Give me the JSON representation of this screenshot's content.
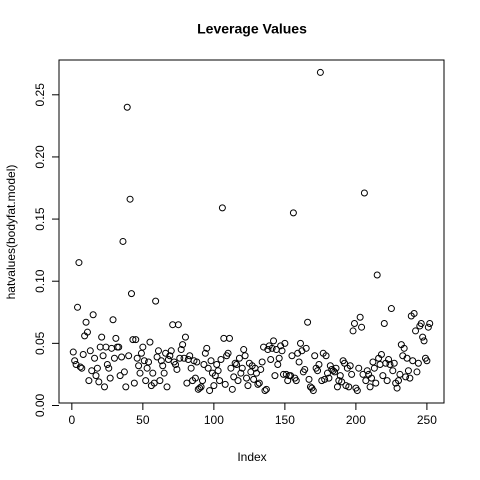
{
  "chart_data": {
    "type": "scatter",
    "title": "Leverage Values",
    "x_label": "Index",
    "y_label": "hatvalues(bodyfat.model)",
    "color": "#000000",
    "x": [
      1,
      2,
      3,
      4,
      5,
      6,
      7,
      8,
      9,
      10,
      11,
      12,
      13,
      14,
      15,
      16,
      17,
      18,
      19,
      20,
      21,
      22,
      23,
      24,
      25,
      26,
      27,
      28,
      29,
      30,
      31,
      32,
      33,
      34,
      35,
      36,
      37,
      38,
      39,
      40,
      41,
      42,
      43,
      44,
      45,
      46,
      47,
      48,
      49,
      50,
      51,
      52,
      53,
      54,
      55,
      56,
      57,
      58,
      59,
      60,
      61,
      62,
      63,
      64,
      65,
      66,
      67,
      68,
      69,
      70,
      71,
      72,
      73,
      74,
      75,
      76,
      77,
      78,
      79,
      80,
      81,
      82,
      83,
      84,
      85,
      86,
      87,
      88,
      89,
      90,
      91,
      92,
      93,
      94,
      95,
      96,
      97,
      98,
      99,
      100,
      101,
      102,
      103,
      104,
      105,
      106,
      107,
      108,
      109,
      110,
      111,
      112,
      113,
      114,
      115,
      116,
      117,
      118,
      119,
      120,
      121,
      122,
      123,
      124,
      125,
      126,
      127,
      128,
      129,
      130,
      131,
      132,
      133,
      134,
      135,
      136,
      137,
      138,
      139,
      140,
      141,
      142,
      143,
      144,
      145,
      146,
      147,
      148,
      149,
      150,
      151,
      152,
      153,
      154,
      155,
      156,
      157,
      158,
      159,
      160,
      161,
      162,
      163,
      164,
      165,
      166,
      167,
      168,
      169,
      170,
      171,
      172,
      173,
      174,
      175,
      176,
      177,
      178,
      179,
      180,
      181,
      182,
      183,
      184,
      185,
      186,
      187,
      188,
      189,
      190,
      191,
      192,
      193,
      194,
      195,
      196,
      197,
      198,
      199,
      200,
      201,
      202,
      203,
      204,
      205,
      206,
      207,
      208,
      209,
      210,
      211,
      212,
      213,
      214,
      215,
      216,
      217,
      218,
      219,
      220,
      221,
      222,
      223,
      224,
      225,
      226,
      227,
      228,
      229,
      230,
      231,
      232,
      233,
      234,
      235,
      236,
      237,
      238,
      239,
      240,
      241,
      242,
      243,
      244,
      245,
      246,
      247,
      248,
      249,
      250,
      251,
      252
    ],
    "values": [
      0.043,
      0.036,
      0.033,
      0.079,
      0.115,
      0.031,
      0.03,
      0.041,
      0.056,
      0.067,
      0.059,
      0.02,
      0.044,
      0.028,
      0.073,
      0.038,
      0.024,
      0.03,
      0.019,
      0.047,
      0.055,
      0.04,
      0.015,
      0.047,
      0.033,
      0.03,
      0.022,
      0.046,
      0.069,
      0.038,
      0.054,
      0.047,
      0.047,
      0.024,
      0.039,
      0.132,
      0.027,
      0.015,
      0.24,
      0.04,
      0.166,
      0.09,
      0.053,
      0.018,
      0.053,
      0.038,
      0.032,
      0.026,
      0.042,
      0.047,
      0.036,
      0.02,
      0.03,
      0.035,
      0.051,
      0.016,
      0.026,
      0.018,
      0.084,
      0.039,
      0.044,
      0.02,
      0.036,
      0.032,
      0.026,
      0.042,
      0.015,
      0.037,
      0.04,
      0.044,
      0.065,
      0.035,
      0.033,
      0.029,
      0.065,
      0.038,
      0.045,
      0.049,
      0.038,
      0.055,
      0.018,
      0.037,
      0.04,
      0.03,
      0.02,
      0.036,
      0.022,
      0.035,
      0.013,
      0.014,
      0.015,
      0.02,
      0.033,
      0.042,
      0.046,
      0.03,
      0.012,
      0.036,
      0.026,
      0.016,
      0.024,
      0.033,
      0.028,
      0.02,
      0.037,
      0.159,
      0.054,
      0.017,
      0.04,
      0.042,
      0.054,
      0.03,
      0.013,
      0.023,
      0.034,
      0.033,
      0.02,
      0.038,
      0.026,
      0.03,
      0.045,
      0.04,
      0.022,
      0.016,
      0.034,
      0.027,
      0.032,
      0.021,
      0.03,
      0.026,
      0.017,
      0.018,
      0.029,
      0.035,
      0.047,
      0.012,
      0.013,
      0.045,
      0.048,
      0.037,
      0.046,
      0.052,
      0.024,
      0.045,
      0.033,
      0.038,
      0.048,
      0.044,
      0.025,
      0.05,
      0.025,
      0.02,
      0.024,
      0.024,
      0.04,
      0.155,
      0.022,
      0.02,
      0.042,
      0.035,
      0.05,
      0.044,
      0.027,
      0.029,
      0.046,
      0.067,
      0.021,
      0.015,
      0.014,
      0.012,
      0.04,
      0.03,
      0.028,
      0.033,
      0.268,
      0.02,
      0.042,
      0.021,
      0.04,
      0.026,
      0.022,
      0.032,
      0.029,
      0.028,
      0.027,
      0.03,
      0.015,
      0.02,
      0.024,
      0.019,
      0.036,
      0.034,
      0.016,
      0.03,
      0.015,
      0.032,
      0.025,
      0.06,
      0.066,
      0.014,
      0.012,
      0.03,
      0.071,
      0.063,
      0.025,
      0.171,
      0.02,
      0.028,
      0.025,
      0.015,
      0.022,
      0.035,
      0.03,
      0.018,
      0.105,
      0.038,
      0.033,
      0.041,
      0.024,
      0.066,
      0.034,
      0.02,
      0.037,
      0.033,
      0.078,
      0.028,
      0.034,
      0.018,
      0.014,
      0.02,
      0.025,
      0.049,
      0.04,
      0.046,
      0.023,
      0.038,
      0.028,
      0.022,
      0.072,
      0.036,
      0.074,
      0.06,
      0.027,
      0.034,
      0.064,
      0.066,
      0.055,
      0.052,
      0.038,
      0.036,
      0.063,
      0.066
    ],
    "xlim": [
      -9.04,
      262.04
    ],
    "xticks": [
      0,
      50,
      100,
      150,
      200,
      250
    ],
    "ylim": [
      0.002,
      0.278
    ],
    "yticks": [
      {
        "value": 0,
        "label": "0.00"
      },
      {
        "value": 0.05,
        "label": "0.05"
      },
      {
        "value": 0.1,
        "label": "0.10"
      },
      {
        "value": 0.15,
        "label": "0.15"
      },
      {
        "value": 0.2,
        "label": "0.20"
      },
      {
        "value": 0.25,
        "label": "0.25"
      }
    ]
  }
}
